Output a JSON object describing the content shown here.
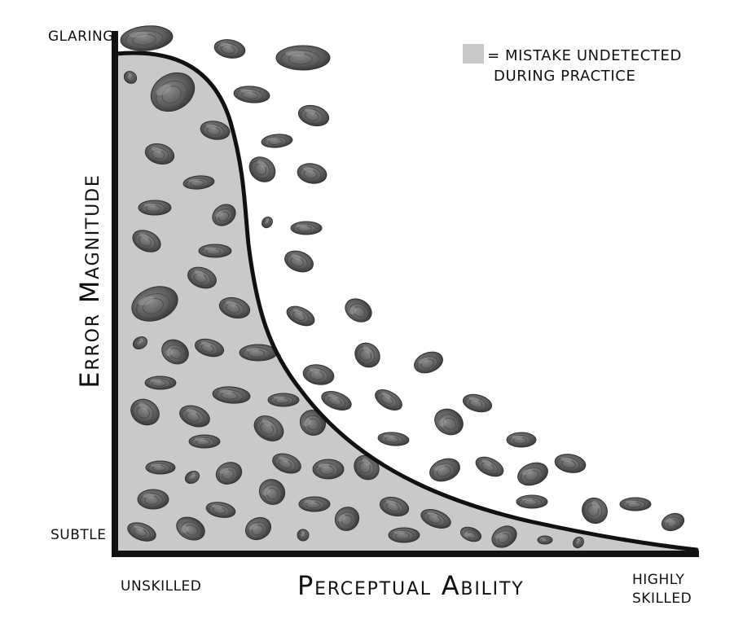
{
  "y_axis": {
    "title": "Error Magnitude",
    "top_label": "GLARING",
    "bottom_label": "SUBTLE"
  },
  "x_axis": {
    "title": "Perceptual Ability",
    "left_label": "UNSKILLED",
    "right_label_line1": "HIGHLY",
    "right_label_line2": "SKILLED"
  },
  "legend": {
    "line1": "= MISTAKE UNDETECTED",
    "line2": "DURING PRACTICE",
    "swatch_color": "#c9c9c9"
  },
  "colors": {
    "axis": "#111111",
    "curve": "#111111",
    "shaded_area": "#c9c9c9",
    "shell_fill": "#5d5d5d",
    "shell_edge": "#3a3a3a"
  },
  "shell_icon": "clam-shell-icon"
}
